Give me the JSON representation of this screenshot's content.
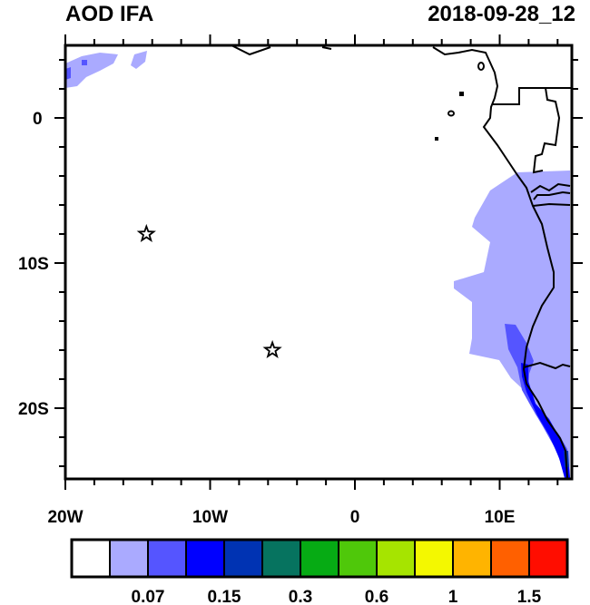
{
  "title": "AOD IFA",
  "date": "2018-09-28_12",
  "x_ticks": [
    {
      "lon": -20,
      "label": "20W"
    },
    {
      "lon": -10,
      "label": "10W"
    },
    {
      "lon": 0,
      "label": "0"
    },
    {
      "lon": 10,
      "label": "10E"
    }
  ],
  "y_ticks": [
    {
      "lat": 0,
      "label": "0"
    },
    {
      "lat": -10,
      "label": "10S"
    },
    {
      "lat": -20,
      "label": "20S"
    }
  ],
  "extent": {
    "lon": [
      -20,
      15
    ],
    "lat": [
      -25,
      5
    ]
  },
  "markers": [
    {
      "lon": -14.4,
      "lat": -8.0,
      "symbol": "star"
    },
    {
      "lon": -5.7,
      "lat": -16.0,
      "symbol": "star"
    }
  ],
  "colorbar": {
    "colors": [
      "#ffffff",
      "#aaaaff",
      "#5555ff",
      "#0000ff",
      "#0033b3",
      "#06735f",
      "#06ab14",
      "#4fc80a",
      "#a6e400",
      "#f4f800",
      "#ffb400",
      "#ff6000",
      "#ff0d00"
    ],
    "labels": [
      {
        "after_box": 2,
        "text": "0.07"
      },
      {
        "after_box": 4,
        "text": "0.15"
      },
      {
        "after_box": 6,
        "text": "0.3"
      },
      {
        "after_box": 8,
        "text": "0.6"
      },
      {
        "after_box": 10,
        "text": "1"
      },
      {
        "after_box": 12,
        "text": "1.5"
      }
    ]
  }
}
